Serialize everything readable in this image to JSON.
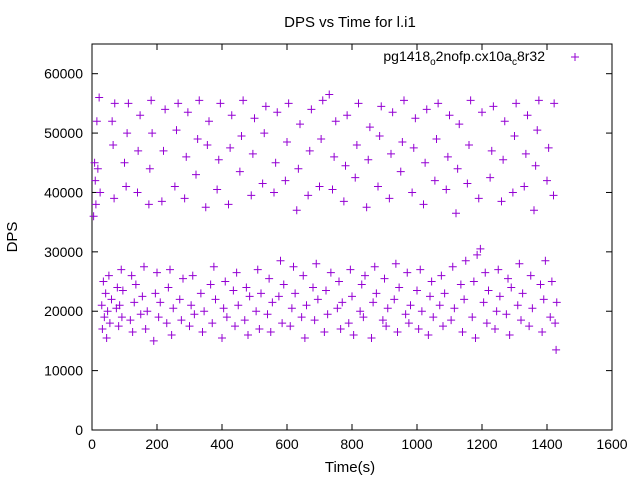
{
  "chart_data": {
    "type": "scatter",
    "title": "DPS vs Time for l.i1",
    "xlabel": "Time(s)",
    "ylabel": "DPS",
    "xlim": [
      0,
      1600
    ],
    "ylim": [
      0,
      65000
    ],
    "xticks": [
      0,
      200,
      400,
      600,
      800,
      1000,
      1200,
      1400,
      1600
    ],
    "yticks": [
      0,
      10000,
      20000,
      30000,
      40000,
      50000,
      60000
    ],
    "grid": false,
    "legend_position": "top-right",
    "series": [
      {
        "name": "pg1418_o2nofp.cx10a_c8r32",
        "name_parts": {
          "base": "pg1418",
          "sub1": "o",
          "mid": "2nofp.cx10a",
          "sub2": "c",
          "end": "8r32"
        },
        "color": "#9400d3",
        "marker": "plus",
        "points": [
          [
            5,
            36000
          ],
          [
            8,
            45000
          ],
          [
            10,
            42000
          ],
          [
            12,
            38000
          ],
          [
            15,
            52000
          ],
          [
            18,
            44000
          ],
          [
            22,
            56000
          ],
          [
            25,
            40000
          ],
          [
            30,
            21000
          ],
          [
            32,
            17000
          ],
          [
            35,
            25000
          ],
          [
            38,
            19000
          ],
          [
            42,
            23000
          ],
          [
            45,
            15500
          ],
          [
            48,
            20000
          ],
          [
            52,
            26000
          ],
          [
            55,
            18000
          ],
          [
            60,
            22000
          ],
          [
            62,
            52000
          ],
          [
            65,
            48000
          ],
          [
            68,
            39000
          ],
          [
            70,
            55000
          ],
          [
            75,
            20500
          ],
          [
            78,
            24000
          ],
          [
            82,
            17500
          ],
          [
            85,
            21000
          ],
          [
            90,
            27000
          ],
          [
            92,
            19000
          ],
          [
            95,
            23500
          ],
          [
            100,
            45000
          ],
          [
            105,
            41000
          ],
          [
            108,
            50000
          ],
          [
            112,
            55000
          ],
          [
            118,
            18500
          ],
          [
            122,
            26000
          ],
          [
            125,
            16500
          ],
          [
            130,
            21500
          ],
          [
            135,
            24500
          ],
          [
            140,
            40000
          ],
          [
            142,
            47000
          ],
          [
            148,
            53000
          ],
          [
            150,
            19500
          ],
          [
            155,
            22500
          ],
          [
            160,
            27500
          ],
          [
            165,
            17000
          ],
          [
            170,
            20000
          ],
          [
            175,
            38000
          ],
          [
            178,
            44000
          ],
          [
            182,
            55500
          ],
          [
            185,
            50000
          ],
          [
            190,
            15000
          ],
          [
            195,
            23000
          ],
          [
            200,
            26500
          ],
          [
            205,
            19000
          ],
          [
            210,
            21500
          ],
          [
            215,
            38500
          ],
          [
            220,
            47000
          ],
          [
            225,
            54000
          ],
          [
            230,
            18000
          ],
          [
            235,
            24000
          ],
          [
            240,
            27000
          ],
          [
            245,
            16000
          ],
          [
            250,
            20500
          ],
          [
            255,
            41000
          ],
          [
            260,
            50500
          ],
          [
            265,
            55000
          ],
          [
            270,
            22000
          ],
          [
            275,
            18500
          ],
          [
            280,
            25500
          ],
          [
            285,
            39000
          ],
          [
            290,
            46000
          ],
          [
            295,
            53500
          ],
          [
            300,
            17500
          ],
          [
            305,
            21000
          ],
          [
            310,
            26000
          ],
          [
            315,
            19500
          ],
          [
            320,
            43000
          ],
          [
            325,
            49000
          ],
          [
            330,
            55500
          ],
          [
            335,
            23000
          ],
          [
            340,
            16500
          ],
          [
            345,
            20000
          ],
          [
            350,
            37500
          ],
          [
            355,
            48000
          ],
          [
            360,
            52000
          ],
          [
            365,
            24500
          ],
          [
            370,
            18000
          ],
          [
            375,
            27500
          ],
          [
            380,
            22000
          ],
          [
            385,
            40500
          ],
          [
            390,
            45500
          ],
          [
            395,
            55000
          ],
          [
            400,
            15500
          ],
          [
            405,
            20500
          ],
          [
            410,
            25000
          ],
          [
            415,
            19000
          ],
          [
            420,
            38000
          ],
          [
            425,
            47500
          ],
          [
            430,
            53000
          ],
          [
            435,
            23500
          ],
          [
            440,
            17500
          ],
          [
            445,
            26500
          ],
          [
            450,
            21000
          ],
          [
            455,
            43500
          ],
          [
            460,
            49500
          ],
          [
            465,
            55500
          ],
          [
            470,
            18500
          ],
          [
            475,
            24000
          ],
          [
            480,
            16000
          ],
          [
            485,
            22500
          ],
          [
            490,
            39500
          ],
          [
            495,
            46500
          ],
          [
            500,
            52500
          ],
          [
            505,
            20000
          ],
          [
            510,
            27000
          ],
          [
            515,
            17000
          ],
          [
            520,
            23000
          ],
          [
            525,
            41500
          ],
          [
            530,
            50000
          ],
          [
            535,
            54500
          ],
          [
            540,
            19500
          ],
          [
            545,
            25500
          ],
          [
            550,
            16500
          ],
          [
            555,
            21500
          ],
          [
            560,
            40000
          ],
          [
            565,
            45000
          ],
          [
            570,
            53500
          ],
          [
            575,
            22500
          ],
          [
            580,
            28500
          ],
          [
            585,
            18000
          ],
          [
            590,
            24500
          ],
          [
            595,
            42000
          ],
          [
            600,
            48500
          ],
          [
            605,
            55000
          ],
          [
            610,
            17500
          ],
          [
            615,
            20500
          ],
          [
            620,
            27500
          ],
          [
            625,
            23000
          ],
          [
            630,
            37000
          ],
          [
            635,
            44000
          ],
          [
            640,
            51500
          ],
          [
            645,
            19000
          ],
          [
            650,
            26000
          ],
          [
            655,
            15500
          ],
          [
            660,
            21000
          ],
          [
            665,
            39500
          ],
          [
            670,
            47000
          ],
          [
            675,
            54000
          ],
          [
            680,
            24000
          ],
          [
            685,
            18500
          ],
          [
            690,
            28000
          ],
          [
            695,
            22000
          ],
          [
            700,
            41000
          ],
          [
            705,
            49000
          ],
          [
            710,
            55500
          ],
          [
            715,
            16500
          ],
          [
            720,
            23500
          ],
          [
            725,
            19500
          ],
          [
            730,
            56500
          ],
          [
            735,
            26500
          ],
          [
            740,
            40500
          ],
          [
            745,
            46000
          ],
          [
            750,
            52000
          ],
          [
            755,
            20500
          ],
          [
            760,
            25000
          ],
          [
            765,
            17000
          ],
          [
            770,
            21500
          ],
          [
            775,
            38500
          ],
          [
            780,
            44500
          ],
          [
            785,
            53000
          ],
          [
            790,
            18000
          ],
          [
            795,
            27000
          ],
          [
            800,
            22500
          ],
          [
            805,
            16000
          ],
          [
            810,
            42500
          ],
          [
            815,
            48000
          ],
          [
            820,
            55000
          ],
          [
            825,
            20000
          ],
          [
            830,
            24500
          ],
          [
            835,
            19000
          ],
          [
            840,
            26000
          ],
          [
            845,
            37500
          ],
          [
            850,
            45500
          ],
          [
            855,
            51000
          ],
          [
            860,
            15500
          ],
          [
            865,
            21500
          ],
          [
            870,
            27500
          ],
          [
            875,
            23000
          ],
          [
            880,
            41000
          ],
          [
            885,
            49500
          ],
          [
            890,
            54500
          ],
          [
            895,
            18500
          ],
          [
            900,
            25500
          ],
          [
            905,
            17500
          ],
          [
            910,
            20500
          ],
          [
            915,
            39000
          ],
          [
            920,
            46500
          ],
          [
            925,
            53500
          ],
          [
            930,
            22000
          ],
          [
            935,
            28000
          ],
          [
            940,
            16500
          ],
          [
            945,
            24000
          ],
          [
            950,
            43500
          ],
          [
            955,
            48500
          ],
          [
            960,
            55500
          ],
          [
            965,
            19500
          ],
          [
            970,
            26500
          ],
          [
            975,
            18000
          ],
          [
            980,
            21000
          ],
          [
            985,
            40000
          ],
          [
            990,
            47500
          ],
          [
            995,
            52500
          ],
          [
            1000,
            23500
          ],
          [
            1005,
            17000
          ],
          [
            1010,
            27000
          ],
          [
            1015,
            20000
          ],
          [
            1020,
            38000
          ],
          [
            1025,
            45000
          ],
          [
            1030,
            54000
          ],
          [
            1035,
            16000
          ],
          [
            1040,
            22500
          ],
          [
            1045,
            25000
          ],
          [
            1050,
            19000
          ],
          [
            1055,
            42000
          ],
          [
            1060,
            49000
          ],
          [
            1065,
            55000
          ],
          [
            1070,
            21000
          ],
          [
            1075,
            26000
          ],
          [
            1080,
            17500
          ],
          [
            1085,
            23000
          ],
          [
            1090,
            40500
          ],
          [
            1095,
            46000
          ],
          [
            1100,
            53000
          ],
          [
            1105,
            18500
          ],
          [
            1110,
            27500
          ],
          [
            1115,
            20500
          ],
          [
            1120,
            36500
          ],
          [
            1125,
            44000
          ],
          [
            1130,
            51500
          ],
          [
            1135,
            24500
          ],
          [
            1140,
            16500
          ],
          [
            1145,
            22000
          ],
          [
            1150,
            28500
          ],
          [
            1155,
            41500
          ],
          [
            1160,
            48000
          ],
          [
            1165,
            55500
          ],
          [
            1170,
            19000
          ],
          [
            1175,
            25000
          ],
          [
            1180,
            15500
          ],
          [
            1185,
            29500
          ],
          [
            1190,
            39000
          ],
          [
            1195,
            30500
          ],
          [
            1200,
            53500
          ],
          [
            1205,
            21500
          ],
          [
            1210,
            26500
          ],
          [
            1215,
            18000
          ],
          [
            1220,
            23500
          ],
          [
            1225,
            42500
          ],
          [
            1230,
            47000
          ],
          [
            1235,
            54500
          ],
          [
            1240,
            17000
          ],
          [
            1245,
            20000
          ],
          [
            1250,
            27000
          ],
          [
            1255,
            22500
          ],
          [
            1260,
            38500
          ],
          [
            1265,
            45500
          ],
          [
            1270,
            52000
          ],
          [
            1275,
            19500
          ],
          [
            1280,
            25500
          ],
          [
            1285,
            16000
          ],
          [
            1290,
            24000
          ],
          [
            1295,
            40000
          ],
          [
            1300,
            49500
          ],
          [
            1305,
            55000
          ],
          [
            1310,
            21000
          ],
          [
            1315,
            28000
          ],
          [
            1320,
            18500
          ],
          [
            1325,
            23000
          ],
          [
            1330,
            41000
          ],
          [
            1335,
            46500
          ],
          [
            1340,
            53000
          ],
          [
            1345,
            17500
          ],
          [
            1350,
            26000
          ],
          [
            1355,
            20500
          ],
          [
            1360,
            37000
          ],
          [
            1365,
            44500
          ],
          [
            1370,
            50500
          ],
          [
            1375,
            55500
          ],
          [
            1380,
            24500
          ],
          [
            1385,
            16500
          ],
          [
            1390,
            22000
          ],
          [
            1395,
            28500
          ],
          [
            1400,
            42000
          ],
          [
            1405,
            47500
          ],
          [
            1410,
            19000
          ],
          [
            1415,
            25000
          ],
          [
            1420,
            39500
          ],
          [
            1422,
            55000
          ],
          [
            1425,
            18000
          ],
          [
            1428,
            13500
          ],
          [
            1430,
            21500
          ]
        ]
      }
    ]
  }
}
